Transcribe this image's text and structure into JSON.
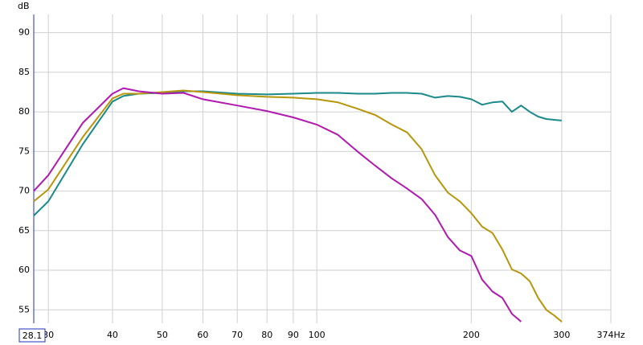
{
  "chart_data": {
    "type": "line",
    "y_label": "dB",
    "log_x": true,
    "grid": true,
    "xlim": [
      28.1,
      374
    ],
    "ylim": [
      53.3,
      92.3
    ],
    "xticks": [
      30,
      40,
      50,
      60,
      70,
      80,
      90,
      100,
      200,
      300,
      {
        "value": 374,
        "label": "374Hz"
      }
    ],
    "yticks": [
      55,
      60,
      65,
      70,
      75,
      80,
      85,
      90
    ],
    "x": [
      28.1,
      30,
      35,
      40,
      42,
      45,
      50,
      55,
      60,
      70,
      80,
      90,
      100,
      110,
      120,
      130,
      140,
      150,
      160,
      170,
      180,
      190,
      200,
      210,
      220,
      230,
      240,
      250,
      260,
      270,
      280,
      290,
      300
    ],
    "series": [
      {
        "color": "#1a8a8a",
        "values": [
          66.9,
          68.7,
          75.9,
          81.3,
          82.0,
          82.3,
          82.4,
          82.6,
          82.6,
          82.3,
          82.2,
          82.3,
          82.4,
          82.4,
          82.3,
          82.3,
          82.4,
          82.4,
          82.3,
          81.8,
          82.0,
          81.9,
          81.6,
          80.9,
          81.2,
          81.3,
          80.0,
          80.8,
          80.0,
          79.4,
          79.1,
          79.0,
          78.9
        ]
      },
      {
        "color": "#b8960c",
        "values": [
          68.7,
          70.2,
          76.8,
          81.7,
          82.3,
          82.3,
          82.5,
          82.7,
          82.5,
          82.1,
          81.9,
          81.8,
          81.6,
          81.2,
          80.4,
          79.6,
          78.4,
          77.4,
          75.3,
          72.0,
          69.8,
          68.7,
          67.2,
          65.5,
          64.7,
          62.6,
          60.1,
          59.6,
          58.6,
          56.5,
          55.0,
          54.3,
          53.5
        ]
      },
      {
        "color": "#b01ab0",
        "values": [
          70.0,
          72.0,
          78.6,
          82.3,
          83.0,
          82.6,
          82.3,
          82.4,
          81.6,
          80.8,
          80.1,
          79.3,
          78.4,
          77.1,
          75.0,
          73.2,
          71.6,
          70.3,
          69.0,
          67.0,
          64.2,
          62.5,
          61.8,
          58.8,
          57.3,
          56.5,
          54.5,
          53.5,
          null,
          null,
          null,
          null,
          null
        ]
      }
    ]
  }
}
